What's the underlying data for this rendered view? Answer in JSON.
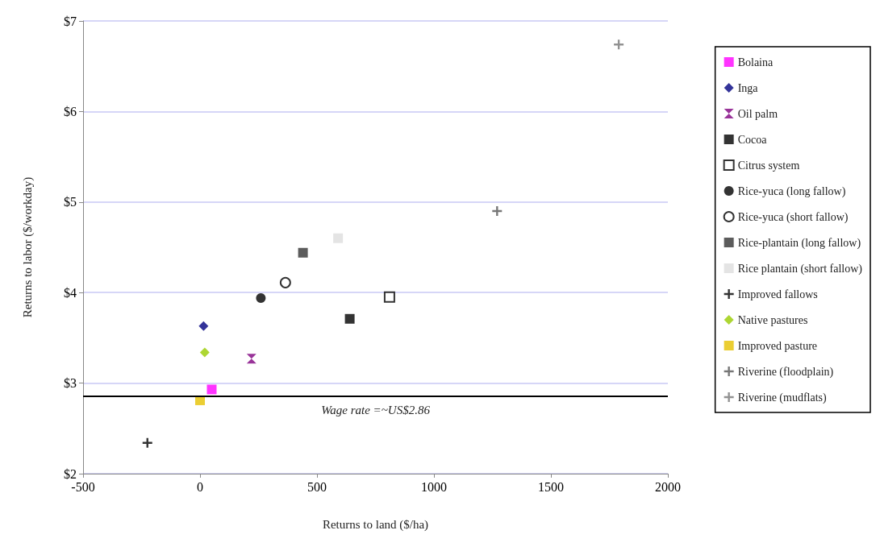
{
  "chart_data": {
    "type": "scatter",
    "xlabel": "Returns to land ($/ha)",
    "ylabel": "Returns to labor ($/workday)",
    "xlim": [
      -500,
      2000
    ],
    "xticks": [
      -500,
      0,
      500,
      1000,
      1500,
      2000
    ],
    "ylim": [
      2,
      7
    ],
    "yticks": [
      {
        "value": 2,
        "label": "$2"
      },
      {
        "value": 3,
        "label": "$3"
      },
      {
        "value": 4,
        "label": "$4"
      },
      {
        "value": 5,
        "label": "$5"
      },
      {
        "value": 6,
        "label": "$6"
      },
      {
        "value": 7,
        "label": "$7"
      }
    ],
    "grid": "y",
    "legend": "right",
    "ref_lines": [
      {
        "axis": "y",
        "value": 2.86,
        "label": "Wage rate =~US$2.86",
        "color": "#000000"
      }
    ],
    "series": [
      {
        "name": "Bolaina",
        "color": "#ff00ff",
        "marker": "square",
        "x": [
          50
        ],
        "values": [
          2.93
        ]
      },
      {
        "name": "Inga",
        "color": "#000080",
        "marker": "diamond",
        "x": [
          15
        ],
        "values": [
          3.63
        ]
      },
      {
        "name": "Oil palm",
        "color": "#800080",
        "marker": "triangle",
        "x": [
          220
        ],
        "values": [
          3.27
        ]
      },
      {
        "name": "Cocoa",
        "color": "#000000",
        "marker": "square",
        "x": [
          640
        ],
        "values": [
          3.71
        ]
      },
      {
        "name": "Citrus system",
        "color": "#ffffff",
        "marker": "square",
        "x": [
          810
        ],
        "values": [
          3.95
        ]
      },
      {
        "name": "Rice-yuca (long fallow)",
        "color": "#000000",
        "marker": "circle",
        "x": [
          260
        ],
        "values": [
          3.94
        ]
      },
      {
        "name": "Rice-yuca (short fallow)",
        "color": "#ffffff",
        "marker": "circle",
        "x": [
          365
        ],
        "values": [
          4.11
        ]
      },
      {
        "name": "Rice-plantain (long fallow)",
        "color": "#333333",
        "marker": "square",
        "x": [
          440
        ],
        "values": [
          4.44
        ]
      },
      {
        "name": "Rice plantain (short fallow)",
        "color": "#dddddd",
        "marker": "square",
        "x": [
          590
        ],
        "values": [
          4.6
        ]
      },
      {
        "name": "Improved fallows",
        "color": "#000000",
        "marker": "cross",
        "x": [
          -225
        ],
        "values": [
          2.34
        ]
      },
      {
        "name": "Native pastures",
        "color": "#99cc00",
        "marker": "diamond",
        "x": [
          20
        ],
        "values": [
          3.34
        ]
      },
      {
        "name": "Improved pasture",
        "color": "#e6c200",
        "marker": "square",
        "x": [
          0
        ],
        "values": [
          2.81
        ]
      },
      {
        "name": "Riverine (floodplain)",
        "color": "#555555",
        "marker": "cross",
        "x": [
          1270
        ],
        "values": [
          4.9
        ]
      },
      {
        "name": "Riverine (mudflats)",
        "color": "#777777",
        "marker": "cross",
        "x": [
          1790
        ],
        "values": [
          6.74
        ]
      }
    ]
  }
}
